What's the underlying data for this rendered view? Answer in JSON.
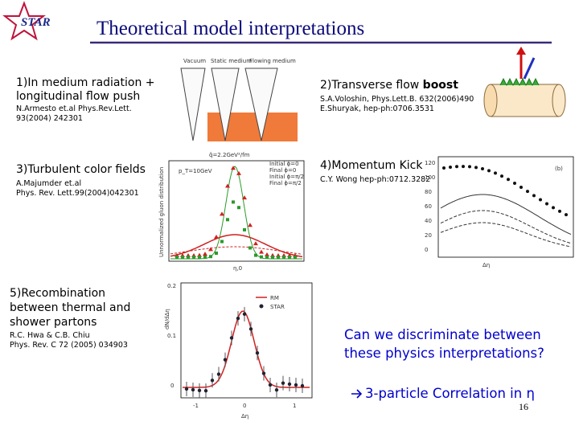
{
  "logo": "STAR",
  "title": "Theoretical model interpretations",
  "sections": [
    {
      "heading": [
        "1)In medium radiation +",
        "longitudinal flow push"
      ],
      "reference": [
        "N.Armesto et.al Phys.Rev.Lett.",
        "93(2004) 242301"
      ]
    },
    {
      "heading": [
        "2)Transverse flow ",
        "boost"
      ],
      "reference": [
        "S.A.Voloshin, Phys.Lett.B. 632(2006)490",
        "E.Shuryak, hep-ph:0706.3531"
      ]
    },
    {
      "heading": [
        "3)Turbulent color fields"
      ],
      "reference": [
        "A.Majumder et.al",
        "Phys. Rev. Lett.99(2004)042301"
      ]
    },
    {
      "heading": [
        "4)Momentum Kick"
      ],
      "reference": [
        "C.Y. Wong  hep-ph:0712.3282"
      ]
    },
    {
      "heading": [
        "5)Recombination",
        "between thermal and",
        "shower partons"
      ],
      "reference": [
        "R.C. Hwa & C.B. Chiu",
        "Phys. Rev. C 72 (2005) 034903"
      ]
    }
  ],
  "figures": {
    "cones": {
      "labels": [
        "Vacuum",
        "Static medium",
        "Flowing medium"
      ]
    },
    "turbulent": {
      "annotations": [
        "q̂=2.2GeV²/fm",
        "p_T=10GeV"
      ],
      "legend": [
        "Initial ϕ=0",
        "Final ϕ=0",
        "Initial ϕ=π/2",
        "Final ϕ=π/2"
      ],
      "x_label": "η,0",
      "y_label": "Unnormalized gluon distribution"
    },
    "kick": {
      "panel": "(b)",
      "yticks": [
        "120",
        "100",
        "80",
        "60",
        "40",
        "20",
        "0"
      ],
      "x_label": "Δη"
    },
    "recombination": {
      "legend": [
        "RM",
        "STAR"
      ],
      "x_label": "Δη",
      "y_label": "dN/dΔη",
      "xticks": [
        "-1",
        "0",
        "1"
      ],
      "yticks": [
        "0.2",
        "0.1",
        "0"
      ]
    }
  },
  "question": [
    "Can we discriminate between",
    "these physics interpretations?"
  ],
  "conclusion": "3-particle Correlation in η",
  "page_number": "16"
}
